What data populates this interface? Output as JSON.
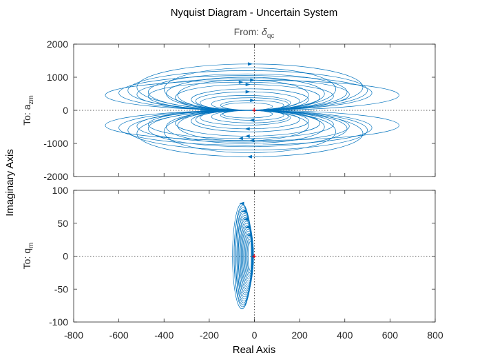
{
  "chart_data": {
    "type": "line",
    "title": "Nyquist Diagram - Uncertain System",
    "input_label": "From: ",
    "input_symbol": "δ",
    "input_subscript": "qc",
    "xlabel": "Real Axis",
    "ylabel": "Imaginary Axis",
    "xlim": [
      -800,
      800
    ],
    "xticks": [
      "-800",
      "-600",
      "-400",
      "-200",
      "0",
      "200",
      "400",
      "600",
      "800"
    ],
    "curve_color": "#0072bd",
    "critical_point": [
      -1,
      0
    ],
    "panels": [
      {
        "output_prefix": "To: a",
        "output_subscript": "zm",
        "ylim": [
          -2000,
          2000
        ],
        "yticks": [
          "2000",
          "1000",
          "0",
          "-1000",
          "-2000"
        ],
        "ytick_values": [
          2000,
          1000,
          0,
          -1000,
          -2000
        ],
        "grid": false,
        "series": [
          {
            "values": [
              {
                "center": -10,
                "rx": 650,
                "ry": 910
              },
              {
                "center": -40,
                "rx": 560,
                "ry": 1050
              },
              {
                "center": -30,
                "rx": 530,
                "ry": 1200
              },
              {
                "center": -20,
                "rx": 500,
                "ry": 1400
              },
              {
                "center": -50,
                "rx": 470,
                "ry": 960
              },
              {
                "center": -30,
                "rx": 440,
                "ry": 1100
              },
              {
                "center": -60,
                "rx": 410,
                "ry": 850
              },
              {
                "center": -20,
                "rx": 380,
                "ry": 1280
              },
              {
                "center": -40,
                "rx": 350,
                "ry": 1000
              },
              {
                "center": -30,
                "rx": 320,
                "ry": 780
              },
              {
                "center": -50,
                "rx": 290,
                "ry": 920
              },
              {
                "center": -20,
                "rx": 260,
                "ry": 650
              },
              {
                "center": -30,
                "rx": 230,
                "ry": 560
              },
              {
                "center": -40,
                "rx": 200,
                "ry": 450
              },
              {
                "center": -20,
                "rx": 170,
                "ry": 380
              },
              {
                "center": -10,
                "rx": 140,
                "ry": 300
              },
              {
                "center": -30,
                "rx": 110,
                "ry": 230
              }
            ]
          }
        ]
      },
      {
        "output_prefix": "To: q",
        "output_subscript": "m",
        "ylim": [
          -100,
          100
        ],
        "yticks": [
          "100",
          "50",
          "0",
          "-50",
          "-100"
        ],
        "ytick_values": [
          100,
          50,
          0,
          -50,
          -100
        ],
        "grid": false,
        "series": [
          {
            "values": [
              {
                "center": -55,
                "rx": 42,
                "ry": 80
              },
              {
                "center": -52,
                "rx": 38,
                "ry": 77
              },
              {
                "center": -50,
                "rx": 40,
                "ry": 74
              },
              {
                "center": -48,
                "rx": 36,
                "ry": 71
              },
              {
                "center": -46,
                "rx": 37,
                "ry": 68
              },
              {
                "center": -44,
                "rx": 34,
                "ry": 65
              },
              {
                "center": -42,
                "rx": 35,
                "ry": 62
              },
              {
                "center": -40,
                "rx": 32,
                "ry": 59
              },
              {
                "center": -38,
                "rx": 33,
                "ry": 56
              },
              {
                "center": -36,
                "rx": 30,
                "ry": 53
              },
              {
                "center": -34,
                "rx": 29,
                "ry": 50
              },
              {
                "center": -32,
                "rx": 27,
                "ry": 47
              },
              {
                "center": -30,
                "rx": 26,
                "ry": 44
              },
              {
                "center": -28,
                "rx": 24,
                "ry": 41
              },
              {
                "center": -26,
                "rx": 22,
                "ry": 38
              },
              {
                "center": -24,
                "rx": 20,
                "ry": 35
              },
              {
                "center": -22,
                "rx": 18,
                "ry": 32
              },
              {
                "center": -20,
                "rx": 16,
                "ry": 29
              },
              {
                "center": -18,
                "rx": 14,
                "ry": 26
              },
              {
                "center": -16,
                "rx": 12,
                "ry": 23
              }
            ]
          }
        ]
      }
    ]
  }
}
